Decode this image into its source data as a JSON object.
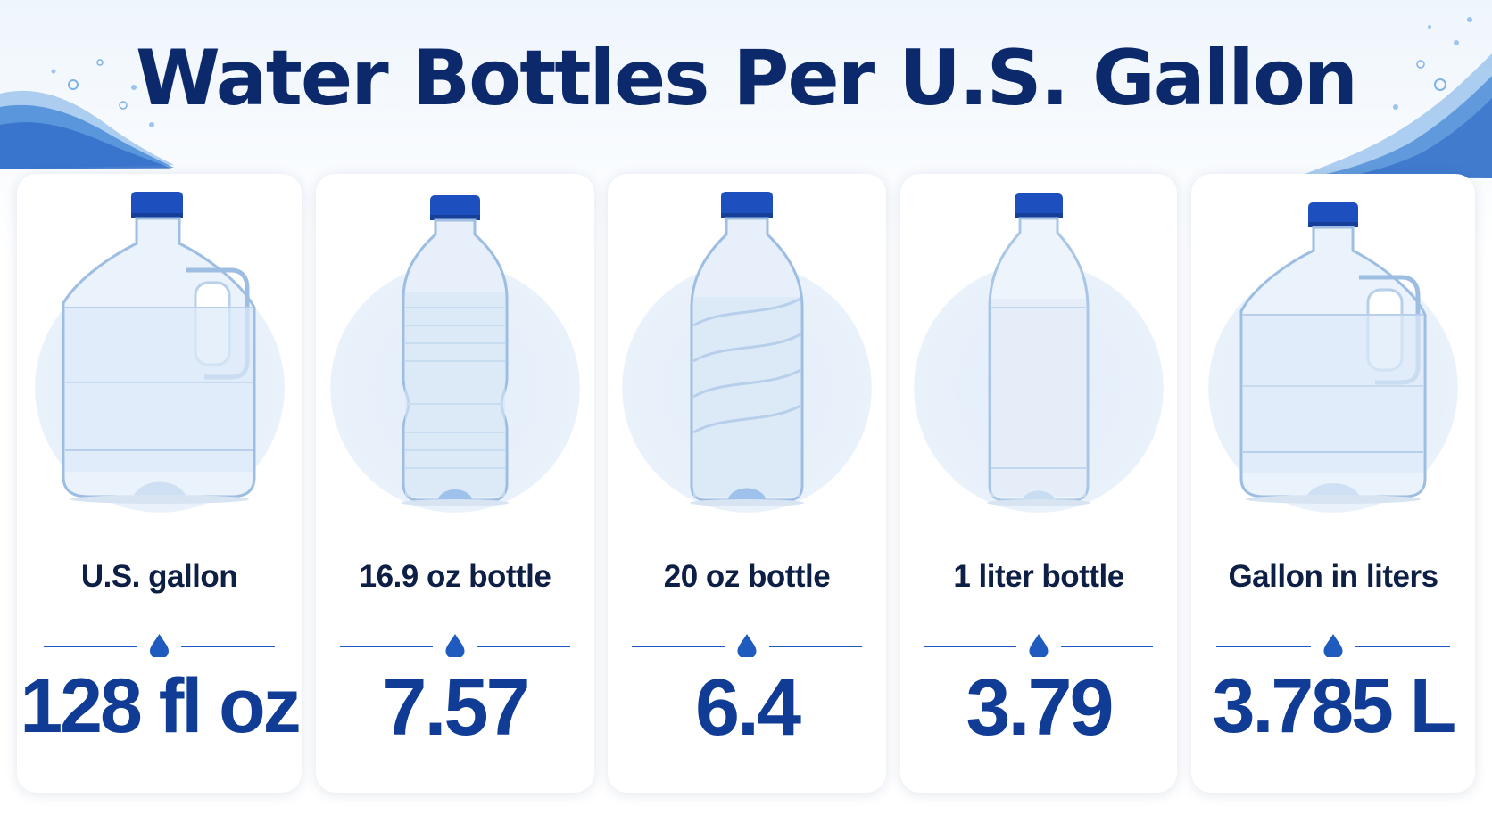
{
  "title": "Water Bottles Per U.S. Gallon",
  "colors": {
    "title": "#0c2a6b",
    "label": "#0e1f45",
    "value": "#103c96",
    "accent": "#1f5bbf",
    "cap": "#1d4fbf"
  },
  "cards": [
    {
      "label": "U.S. gallon",
      "value": "128 fl oz",
      "icon": "gallon-jug-icon"
    },
    {
      "label": "16.9 oz bottle",
      "value": "7.57",
      "icon": "ribbed-bottle-icon"
    },
    {
      "label": "20 oz bottle",
      "value": "6.4",
      "icon": "swirl-bottle-icon"
    },
    {
      "label": "1 liter bottle",
      "value": "3.79",
      "icon": "liter-bottle-icon"
    },
    {
      "label": "Gallon in liters",
      "value": "3.785 L",
      "icon": "gallon-jug-icon"
    }
  ]
}
